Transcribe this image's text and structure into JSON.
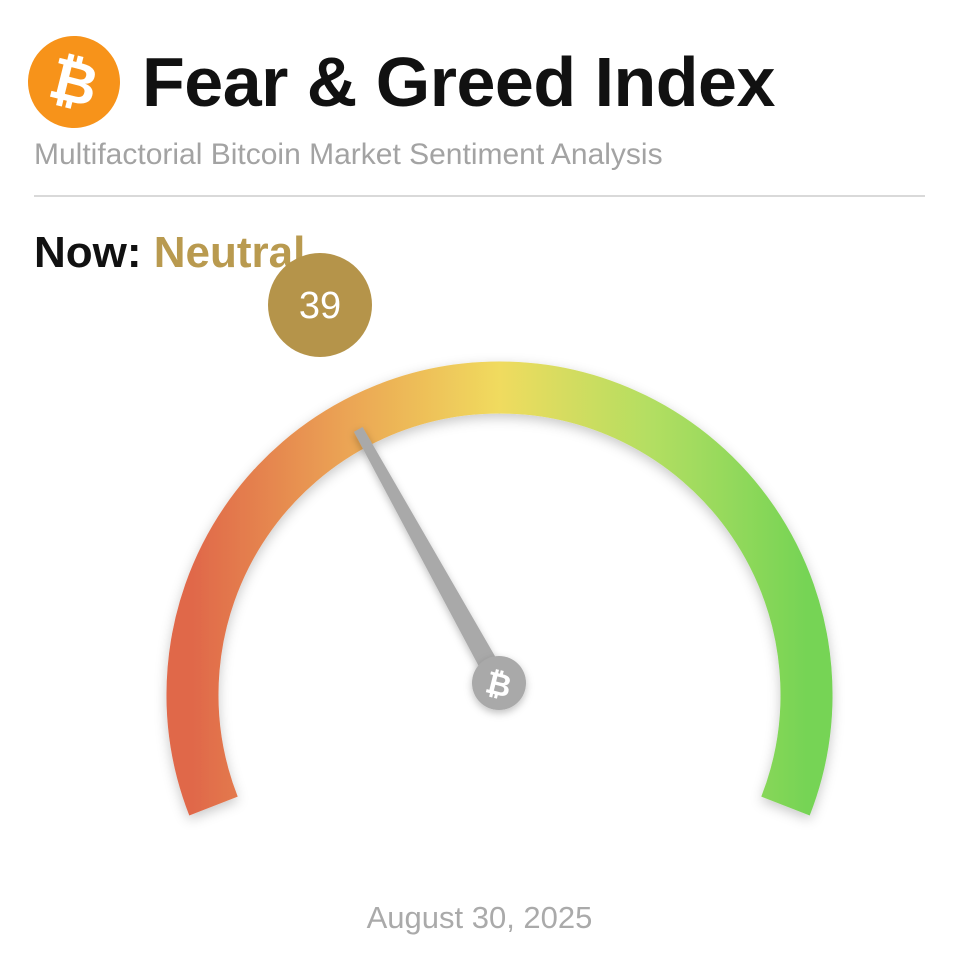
{
  "header": {
    "logo_glyph": "₿",
    "title": "Fear & Greed Index",
    "subtitle": "Multifactorial Bitcoin Market Sentiment Analysis"
  },
  "status": {
    "prefix": "Now:",
    "sentiment": "Neutral",
    "sentiment_color": "#b99a4f"
  },
  "gauge": {
    "value": 39,
    "value_label": "39",
    "min": 0,
    "max": 100,
    "hub_glyph": "₿",
    "colors": {
      "fear": "#e0684a",
      "neutral": "#f0db5e",
      "greed": "#7ad458",
      "badge": "#b5944a",
      "needle": "#a9a9a9"
    }
  },
  "footer": {
    "date": "August 30, 2025"
  }
}
